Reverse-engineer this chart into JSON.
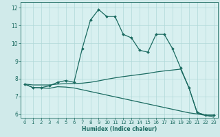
{
  "xlabel": "Humidex (Indice chaleur)",
  "xlim": [
    -0.5,
    23.5
  ],
  "ylim": [
    5.8,
    12.3
  ],
  "yticks": [
    6,
    7,
    8,
    9,
    10,
    11,
    12
  ],
  "xticks": [
    0,
    1,
    2,
    3,
    4,
    5,
    6,
    7,
    8,
    9,
    10,
    11,
    12,
    13,
    14,
    15,
    16,
    17,
    18,
    19,
    20,
    21,
    22,
    23
  ],
  "xtick_labels": [
    "0",
    "1",
    "2",
    "3",
    "4",
    "5",
    "6",
    "7",
    "8",
    "9",
    "10",
    "11",
    "12",
    "13",
    "14",
    "15",
    "16",
    "17",
    "18",
    "19",
    "20",
    "21",
    "22",
    "23"
  ],
  "bg_color": "#d0eaea",
  "plot_bg": "#d8f0f0",
  "line_color": "#1a6a60",
  "grid_color": "#b0d8d8",
  "series1_x": [
    0,
    1,
    2,
    3,
    4,
    5,
    6,
    7,
    8,
    9,
    10,
    11,
    12,
    13,
    14,
    15,
    16,
    17,
    18,
    19,
    20,
    21,
    22,
    23
  ],
  "series1_y": [
    7.7,
    7.5,
    7.5,
    7.6,
    7.8,
    7.9,
    7.8,
    9.7,
    11.3,
    11.9,
    11.5,
    11.5,
    10.5,
    10.3,
    9.6,
    9.5,
    10.5,
    10.5,
    9.7,
    8.6,
    7.5,
    6.1,
    5.95,
    5.95
  ],
  "series2_x": [
    0,
    1,
    2,
    3,
    4,
    5,
    6,
    7,
    8,
    9,
    10,
    11,
    12,
    13,
    14,
    15,
    16,
    17,
    18,
    19,
    20,
    21,
    22,
    23
  ],
  "series2_y": [
    7.7,
    7.65,
    7.65,
    7.65,
    7.7,
    7.72,
    7.73,
    7.75,
    7.8,
    7.88,
    7.97,
    8.05,
    8.12,
    8.18,
    8.24,
    8.3,
    8.38,
    8.44,
    8.49,
    8.54,
    7.5,
    6.1,
    5.95,
    5.95
  ],
  "series3_x": [
    0,
    1,
    2,
    3,
    4,
    5,
    6,
    7,
    8,
    9,
    10,
    11,
    12,
    13,
    14,
    15,
    16,
    17,
    18,
    19,
    20,
    21,
    22,
    23
  ],
  "series3_y": [
    7.7,
    7.5,
    7.48,
    7.46,
    7.55,
    7.53,
    7.48,
    7.38,
    7.28,
    7.18,
    7.08,
    6.98,
    6.88,
    6.78,
    6.68,
    6.58,
    6.48,
    6.38,
    6.28,
    6.18,
    6.08,
    6.02,
    5.94,
    5.84
  ],
  "marker_style": "D",
  "marker_size": 2.0,
  "linewidth": 0.9,
  "xlabel_fontsize": 5.5,
  "tick_fontsize": 5.0
}
